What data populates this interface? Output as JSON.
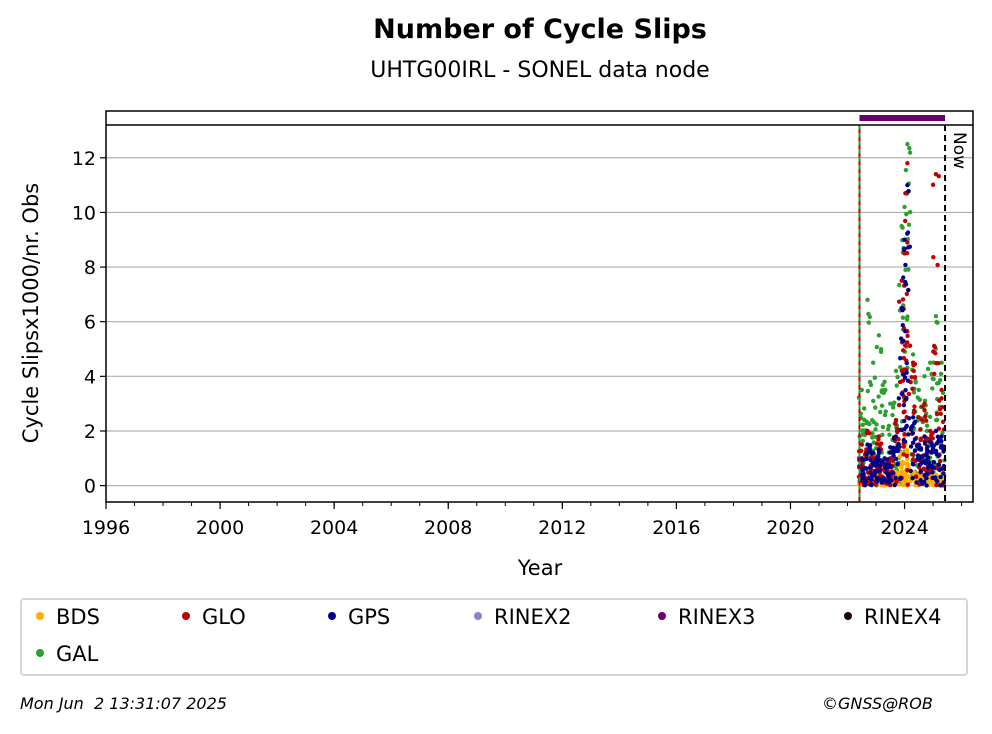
{
  "chart_data": {
    "type": "scatter",
    "title": "Number of Cycle Slips",
    "subtitle": "UHTG00IRL - SONEL data node",
    "xlabel": "Year",
    "ylabel": "Cycle Slipsx1000/nr. Obs",
    "xlim": [
      1996,
      2026.4
    ],
    "ylim": [
      -0.6,
      13.2
    ],
    "xticks": [
      1996,
      2000,
      2004,
      2008,
      2012,
      2016,
      2020,
      2024
    ],
    "yticks": [
      0,
      2,
      4,
      6,
      8,
      10,
      12
    ],
    "grid": "horizontal",
    "legend_position": "below",
    "now_label": "Now",
    "now_year": 2025.42,
    "start_year": 2022.42,
    "rinex3_period": [
      2022.42,
      2025.42
    ],
    "series": [
      {
        "name": "BDS",
        "color": "#ffb000",
        "x": [
          2022.5,
          2022.7,
          2022.9,
          2023.1,
          2023.3,
          2023.5,
          2023.7,
          2023.9,
          2024.0,
          2024.1,
          2024.3,
          2024.5,
          2024.7,
          2024.9,
          2025.1,
          2025.3
        ],
        "y": [
          0.4,
          0.3,
          0.5,
          0.4,
          0.3,
          0.6,
          0.5,
          1.2,
          1.8,
          0.8,
          0.5,
          0.4,
          0.6,
          0.5,
          0.4,
          0.5
        ]
      },
      {
        "name": "GLO",
        "color": "#c00000",
        "x": [
          2022.5,
          2022.7,
          2022.9,
          2023.1,
          2023.3,
          2023.5,
          2023.7,
          2023.9,
          2024.0,
          2024.1,
          2024.3,
          2024.5,
          2024.7,
          2024.9,
          2025.1,
          2025.3
        ],
        "y": [
          1.5,
          2.0,
          1.2,
          1.8,
          0.8,
          1.0,
          2.4,
          7.5,
          8.5,
          11.8,
          4.5,
          2.5,
          3.0,
          2.0,
          11.4,
          3.5
        ]
      },
      {
        "name": "GPS",
        "color": "#00008b",
        "x": [
          2022.5,
          2022.7,
          2022.9,
          2023.1,
          2023.3,
          2023.5,
          2023.7,
          2023.9,
          2024.0,
          2024.1,
          2024.3,
          2024.5,
          2024.7,
          2024.9,
          2025.1,
          2025.3
        ],
        "y": [
          1.0,
          1.5,
          1.2,
          1.3,
          1.0,
          1.4,
          1.8,
          6.5,
          9.0,
          11.0,
          2.5,
          1.5,
          1.8,
          1.6,
          2.0,
          1.8
        ]
      },
      {
        "name": "RINEX2",
        "color": "#8c82c8",
        "x": [],
        "y": []
      },
      {
        "name": "RINEX3",
        "color": "#6a006a",
        "x": [
          2022.42,
          2025.42
        ],
        "y": [
          13.5,
          13.5
        ]
      },
      {
        "name": "RINEX4",
        "color": "#1a0016",
        "x": [],
        "y": []
      },
      {
        "name": "GAL",
        "color": "#2ca02c",
        "x": [
          2022.5,
          2022.7,
          2022.9,
          2023.1,
          2023.3,
          2023.5,
          2023.7,
          2023.9,
          2024.0,
          2024.1,
          2024.3,
          2024.5,
          2024.7,
          2024.9,
          2025.1,
          2025.3
        ],
        "y": [
          3.5,
          6.8,
          4.5,
          5.5,
          3.8,
          3.0,
          4.2,
          9.5,
          10.2,
          12.5,
          4.8,
          3.5,
          4.0,
          4.5,
          6.2,
          4.5
        ]
      }
    ]
  },
  "footer": {
    "timestamp": "Mon Jun  2 13:31:07 2025",
    "copyright": "©GNSS@ROB"
  }
}
